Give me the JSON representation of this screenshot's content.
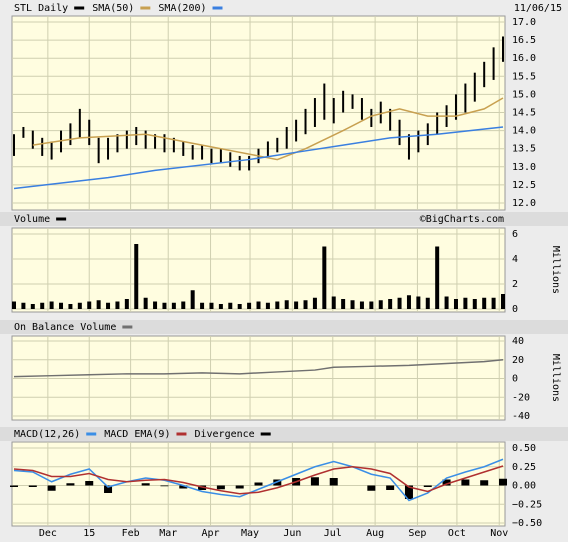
{
  "chart_data": [
    {
      "type": "ohlc",
      "title": "STL Daily",
      "date": "11/06/15",
      "color": "#000000",
      "x": [
        0,
        1,
        2,
        3,
        4,
        5,
        6,
        7,
        8,
        9,
        10,
        11,
        12,
        13,
        14,
        15,
        16,
        17,
        18,
        19,
        20,
        21,
        22,
        23,
        24,
        25,
        26,
        27,
        28,
        29,
        30,
        31,
        32,
        33,
        34,
        35,
        36,
        37,
        38,
        39,
        40,
        41,
        42,
        43,
        44,
        45,
        46,
        47,
        48,
        49,
        50,
        51,
        52
      ],
      "high": [
        13.9,
        14.1,
        14.0,
        13.8,
        13.7,
        14.0,
        14.2,
        14.6,
        14.3,
        13.8,
        13.8,
        13.9,
        14.0,
        14.1,
        14.0,
        13.9,
        13.9,
        13.8,
        13.7,
        13.6,
        13.6,
        13.5,
        13.5,
        13.4,
        13.3,
        13.3,
        13.5,
        13.7,
        13.8,
        14.1,
        14.3,
        14.6,
        14.9,
        15.3,
        14.9,
        15.1,
        15.0,
        14.9,
        14.6,
        14.8,
        14.6,
        14.3,
        13.9,
        14.0,
        14.2,
        14.5,
        14.7,
        15.0,
        15.3,
        15.6,
        15.9,
        16.3,
        16.6
      ],
      "low": [
        13.3,
        13.8,
        13.5,
        13.3,
        13.2,
        13.4,
        13.6,
        13.8,
        13.6,
        13.1,
        13.2,
        13.4,
        13.5,
        13.6,
        13.5,
        13.5,
        13.4,
        13.4,
        13.3,
        13.2,
        13.2,
        13.1,
        13.1,
        13.0,
        12.9,
        12.9,
        13.1,
        13.3,
        13.4,
        13.5,
        13.7,
        13.9,
        14.1,
        14.3,
        14.2,
        14.5,
        14.6,
        14.3,
        14.1,
        14.2,
        14.0,
        13.6,
        13.2,
        13.4,
        13.6,
        13.9,
        14.1,
        14.3,
        14.5,
        14.8,
        15.2,
        15.4,
        15.9
      ],
      "series": [
        {
          "name": "SMA(50)",
          "color": "#c8a050",
          "x": [
            2,
            7,
            14,
            20,
            26,
            28,
            31,
            35,
            38,
            41,
            44,
            47,
            50,
            52
          ],
          "values": [
            13.6,
            13.8,
            13.9,
            13.6,
            13.3,
            13.2,
            13.5,
            14.0,
            14.4,
            14.6,
            14.4,
            14.4,
            14.6,
            14.9
          ]
        },
        {
          "name": "SMA(200)",
          "color": "#3a7fe0",
          "x": [
            0,
            10,
            15,
            25,
            30,
            35,
            40,
            45,
            52
          ],
          "values": [
            12.4,
            12.7,
            12.9,
            13.2,
            13.4,
            13.6,
            13.8,
            13.9,
            14.1
          ]
        }
      ],
      "ylim": [
        12,
        17
      ],
      "yticks": [
        {
          "value": 12,
          "label": "12.0"
        },
        {
          "value": 12.5,
          "label": "12.5"
        },
        {
          "value": 13,
          "label": "13.0"
        },
        {
          "value": 13.5,
          "label": "13.5"
        },
        {
          "value": 14,
          "label": "14.0"
        },
        {
          "value": 14.5,
          "label": "14.5"
        },
        {
          "value": 15,
          "label": "15.0"
        },
        {
          "value": 15.5,
          "label": "15.5"
        },
        {
          "value": 16,
          "label": "16.0"
        },
        {
          "value": 16.5,
          "label": "16.5"
        },
        {
          "value": 17,
          "label": "17.0"
        }
      ],
      "grid": true
    },
    {
      "type": "bar",
      "title": "Volume",
      "credit": "©BigCharts.com",
      "y_label": "Millions",
      "color": "#000000",
      "x": [
        0,
        1,
        2,
        3,
        4,
        5,
        6,
        7,
        8,
        9,
        10,
        11,
        12,
        13,
        14,
        15,
        16,
        17,
        18,
        19,
        20,
        21,
        22,
        23,
        24,
        25,
        26,
        27,
        28,
        29,
        30,
        31,
        32,
        33,
        34,
        35,
        36,
        37,
        38,
        39,
        40,
        41,
        42,
        43,
        44,
        45,
        46,
        47,
        48,
        49,
        50,
        51,
        52
      ],
      "values": [
        0.6,
        0.5,
        0.4,
        0.5,
        0.6,
        0.5,
        0.4,
        0.5,
        0.6,
        0.7,
        0.5,
        0.6,
        0.8,
        5.2,
        0.9,
        0.6,
        0.5,
        0.5,
        0.6,
        1.5,
        0.5,
        0.5,
        0.4,
        0.5,
        0.4,
        0.5,
        0.6,
        0.5,
        0.6,
        0.7,
        0.6,
        0.7,
        0.9,
        5.0,
        1.0,
        0.8,
        0.7,
        0.6,
        0.6,
        0.7,
        0.8,
        0.9,
        1.1,
        1.0,
        0.9,
        5.0,
        1.0,
        0.8,
        0.9,
        0.8,
        0.9,
        0.9,
        1.2
      ],
      "ylim": [
        0,
        6
      ],
      "yticks": [
        0,
        2,
        4,
        6
      ],
      "grid": true
    },
    {
      "type": "line",
      "title": "On Balance Volume",
      "y_label": "Millions",
      "color": "#707070",
      "x": [
        0,
        4,
        8,
        12,
        16,
        20,
        24,
        28,
        32,
        34,
        38,
        42,
        46,
        50,
        52
      ],
      "values": [
        2,
        3,
        4,
        5,
        5,
        6,
        5,
        7,
        9,
        12,
        13,
        14,
        16,
        18,
        20
      ],
      "ylim": [
        -40,
        40
      ],
      "yticks": [
        -40,
        -20,
        0,
        20,
        40
      ],
      "grid": true
    },
    {
      "type": "macd",
      "x": [
        0,
        2,
        4,
        6,
        8,
        10,
        12,
        14,
        16,
        18,
        20,
        22,
        24,
        26,
        28,
        30,
        32,
        34,
        36,
        38,
        40,
        42,
        44,
        46,
        48,
        50,
        52
      ],
      "series": [
        {
          "name": "MACD(12,26)",
          "color": "#3a8ee6",
          "style": "line",
          "values": [
            0.2,
            0.18,
            0.05,
            0.15,
            0.22,
            -0.02,
            0.05,
            0.1,
            0.07,
            0.0,
            -0.08,
            -0.12,
            -0.15,
            -0.05,
            0.05,
            0.15,
            0.25,
            0.32,
            0.25,
            0.15,
            0.1,
            -0.2,
            -0.1,
            0.1,
            0.18,
            0.25,
            0.35
          ]
        },
        {
          "name": "MACD EMA(9)",
          "color": "#b03030",
          "style": "line",
          "values": [
            0.22,
            0.2,
            0.12,
            0.12,
            0.16,
            0.08,
            0.05,
            0.07,
            0.08,
            0.04,
            -0.02,
            -0.07,
            -0.11,
            -0.09,
            -0.03,
            0.05,
            0.14,
            0.22,
            0.25,
            0.22,
            0.16,
            -0.02,
            -0.08,
            0.02,
            0.1,
            0.18,
            0.26
          ]
        },
        {
          "name": "Divergence",
          "color": "#000000",
          "style": "bar",
          "values": [
            -0.02,
            -0.02,
            -0.07,
            0.03,
            0.06,
            -0.1,
            0,
            0.03,
            -0.01,
            -0.04,
            -0.06,
            -0.05,
            -0.04,
            0.04,
            0.08,
            0.1,
            0.11,
            0.1,
            0,
            -0.07,
            -0.06,
            -0.18,
            -0.02,
            0.08,
            0.08,
            0.07,
            0.09
          ]
        }
      ],
      "ylim": [
        -0.5,
        0.5
      ],
      "yticks": [
        {
          "value": -0.5,
          "label": "−0.50"
        },
        {
          "value": -0.25,
          "label": "−0.25"
        },
        {
          "value": 0,
          "label": "0.00"
        },
        {
          "value": 0.25,
          "label": "0.25"
        },
        {
          "value": 0.5,
          "label": "0.50"
        }
      ],
      "xlim": [
        0,
        52
      ],
      "xticks": [
        {
          "value": 3.6,
          "label": "Dec"
        },
        {
          "value": 8,
          "label": "15"
        },
        {
          "value": 12.4,
          "label": "Feb"
        },
        {
          "value": 16.4,
          "label": "Mar"
        },
        {
          "value": 20.9,
          "label": "Apr"
        },
        {
          "value": 25.1,
          "label": "May"
        },
        {
          "value": 29.6,
          "label": "Jun"
        },
        {
          "value": 33.9,
          "label": "Jul"
        },
        {
          "value": 38.4,
          "label": "Aug"
        },
        {
          "value": 42.9,
          "label": "Sep"
        },
        {
          "value": 47.1,
          "label": "Oct"
        },
        {
          "value": 51.6,
          "label": "Nov"
        }
      ],
      "grid": true
    }
  ]
}
